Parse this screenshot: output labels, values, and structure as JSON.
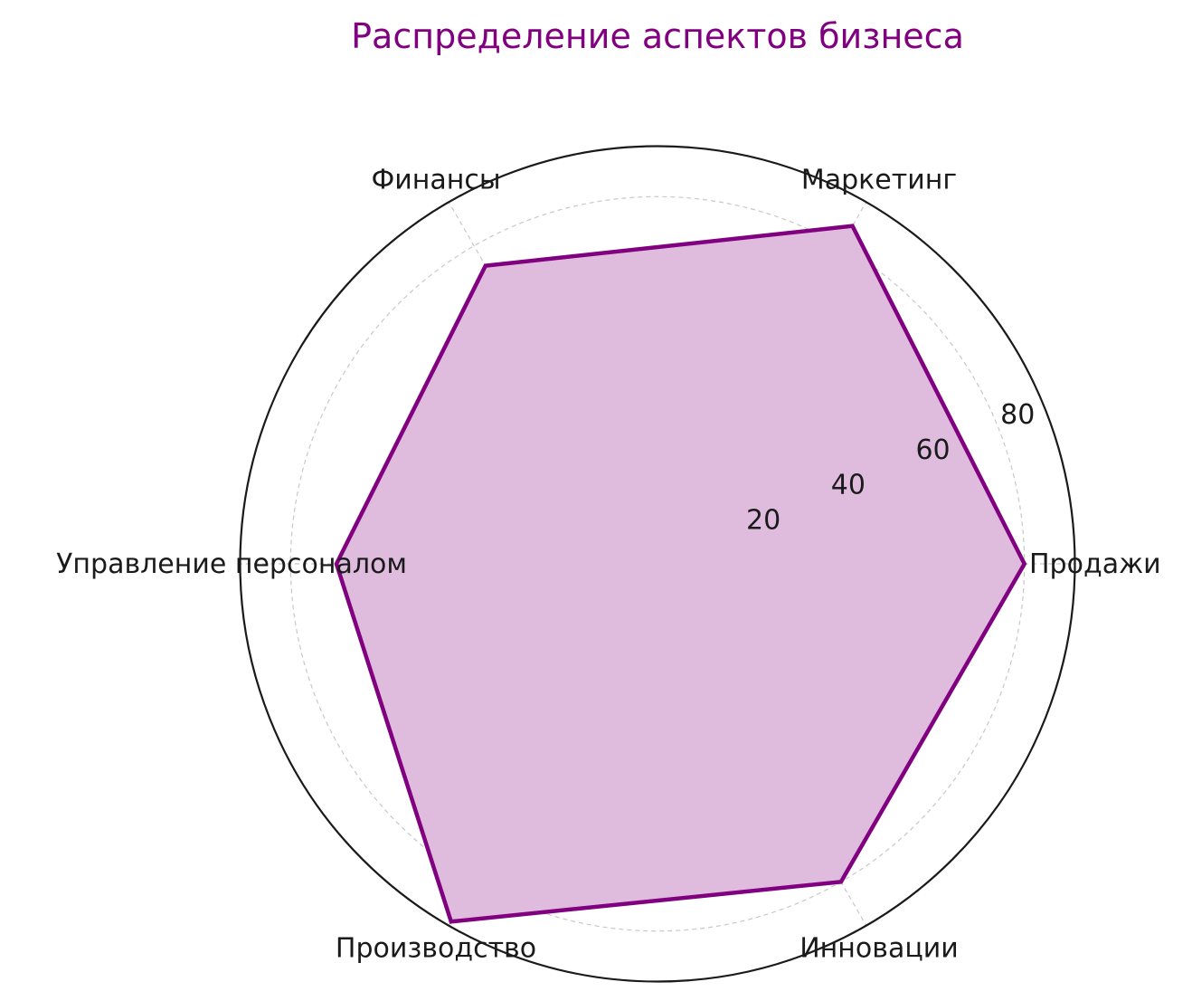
{
  "chart_data": {
    "type": "radar",
    "title": "Распределение аспектов бизнеса",
    "categories": [
      "Продажи",
      "Маркетинг",
      "Финансы",
      "Управление персоналом",
      "Производство",
      "Инновации"
    ],
    "series": [
      {
        "values": [
          80,
          85,
          75,
          70,
          90,
          80
        ]
      }
    ],
    "rlim": [
      0,
      91
    ],
    "rticks": [
      20,
      40,
      60,
      80
    ],
    "rtick_labels": [
      "20",
      "40",
      "60",
      "80"
    ],
    "grid": true,
    "colors": {
      "line": "#800080",
      "fill": "#dfbcdd",
      "title": "#800080",
      "grid": "#c8c8c8",
      "frame": "#1a1a1a",
      "text": "#1a1a1a"
    }
  }
}
